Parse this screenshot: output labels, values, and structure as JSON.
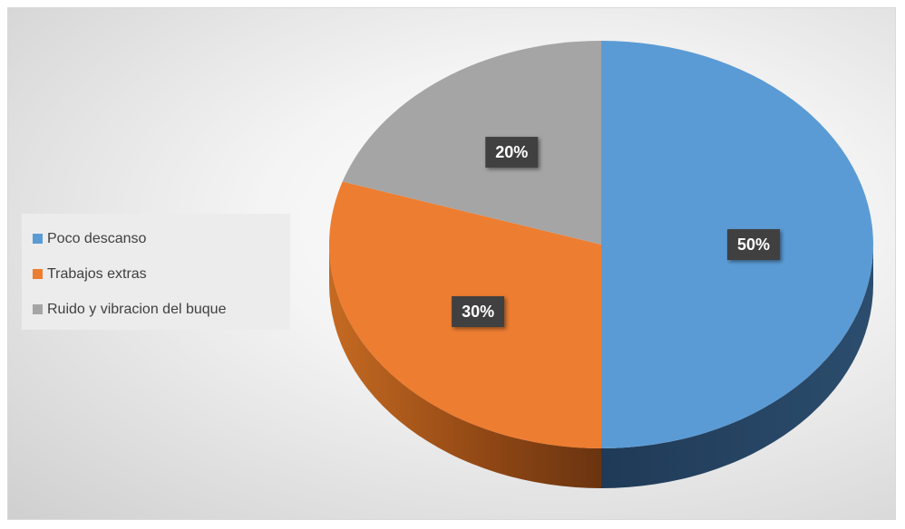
{
  "chart_data": {
    "type": "pie",
    "title": "",
    "categories": [
      "Poco descanso",
      "Trabajos extras",
      "Ruido y vibracion del buque"
    ],
    "values": [
      50,
      30,
      20
    ],
    "labels": [
      "50%",
      "30%",
      "20%"
    ],
    "colors": {
      "Poco descanso": "#5b9bd5",
      "Trabajos extras": "#ed7d31",
      "Ruido y vibracion del buque": "#a5a5a5"
    },
    "legend_position": "left",
    "style": "3d"
  },
  "legend": {
    "items": [
      {
        "label": "Poco descanso",
        "color": "#5b9bd5"
      },
      {
        "label": "Trabajos extras",
        "color": "#ed7d31"
      },
      {
        "label": "Ruido y vibracion del buque",
        "color": "#a5a5a5"
      }
    ]
  }
}
